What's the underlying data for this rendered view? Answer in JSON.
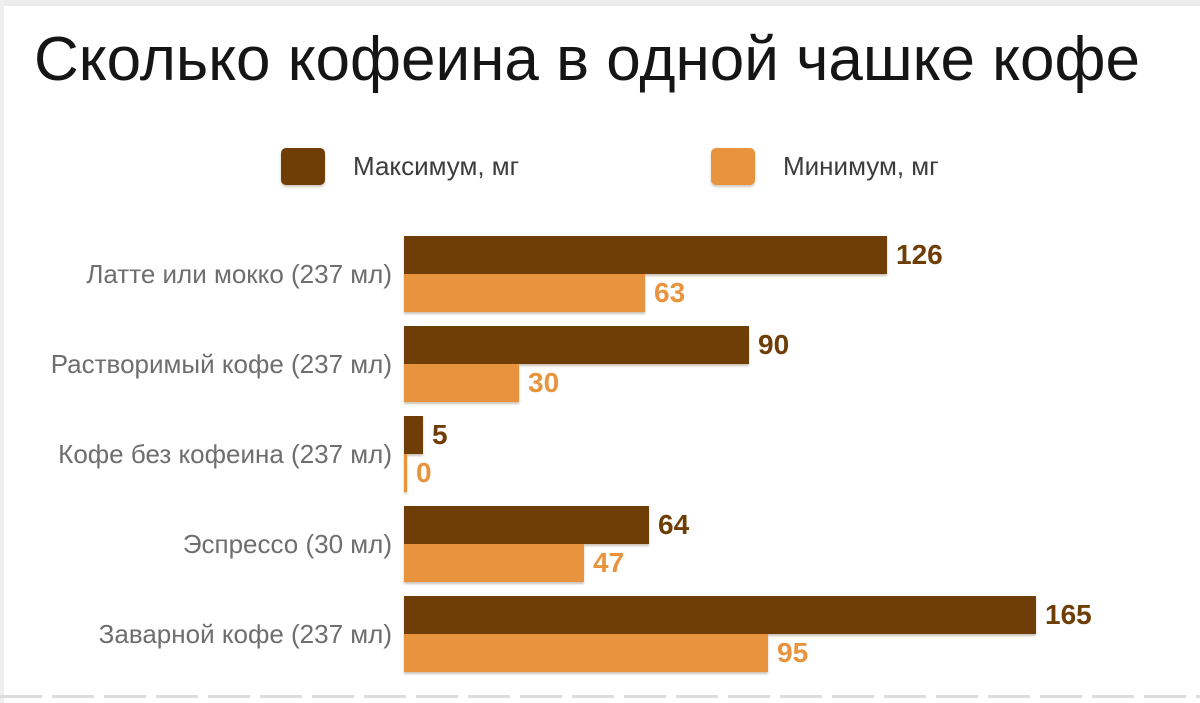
{
  "title": "Сколько кофеина в одной чашке кофе",
  "legend": {
    "max": {
      "label": "Максимум, мг",
      "color": "#6f3e06"
    },
    "min": {
      "label": "Минимум, мг",
      "color": "#e8943f"
    }
  },
  "chart_data": {
    "type": "bar",
    "orientation": "horizontal",
    "title": "Сколько кофеина в одной чашке кофе",
    "categories": [
      "Латте или мокко (237 мл)",
      "Растворимый кофе (237 мл)",
      "Кофе без кофеина (237 мл)",
      "Эспрессо (30 мл)",
      "Заварной кофе (237 мл)"
    ],
    "series": [
      {
        "name": "Максимум, мг",
        "color": "#6f3e06",
        "values": [
          126,
          90,
          5,
          64,
          165
        ]
      },
      {
        "name": "Минимум, мг",
        "color": "#e8943f",
        "values": [
          63,
          30,
          0,
          47,
          95
        ]
      }
    ],
    "value_labels": true,
    "xlim": [
      0,
      165
    ],
    "xlabel": "",
    "ylabel": "",
    "grid": false,
    "legend_position": "top"
  },
  "colors": {
    "title_text": "#151515",
    "category_text": "#6e6e6e",
    "legend_text": "#3c3c3c",
    "max_bar": "#6f3e06",
    "min_bar": "#e8943f",
    "bottom_divider": "#dcdcdc"
  }
}
